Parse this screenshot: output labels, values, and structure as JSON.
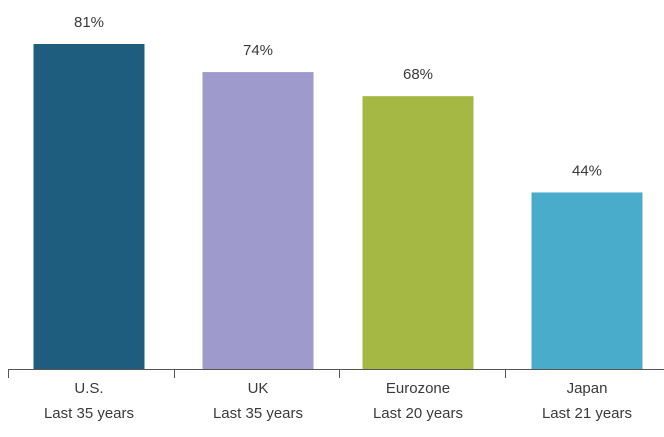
{
  "chart_data": {
    "type": "bar",
    "title": "",
    "xlabel": "",
    "ylabel": "",
    "ylim": [
      0,
      90
    ],
    "grid": false,
    "legend": "none",
    "categories": [
      {
        "line1": "U.S.",
        "line2": "Last 35 years"
      },
      {
        "line1": "UK",
        "line2": "Last 35 years"
      },
      {
        "line1": "Eurozone",
        "line2": "Last 20 years"
      },
      {
        "line1": "Japan",
        "line2": "Last 21 years"
      }
    ],
    "values": [
      81,
      74,
      68,
      44
    ],
    "value_labels": [
      "81%",
      "74%",
      "68%",
      "44%"
    ],
    "colors": [
      "#1f5d7e",
      "#9e9acb",
      "#a5b843",
      "#4aaccb"
    ]
  }
}
